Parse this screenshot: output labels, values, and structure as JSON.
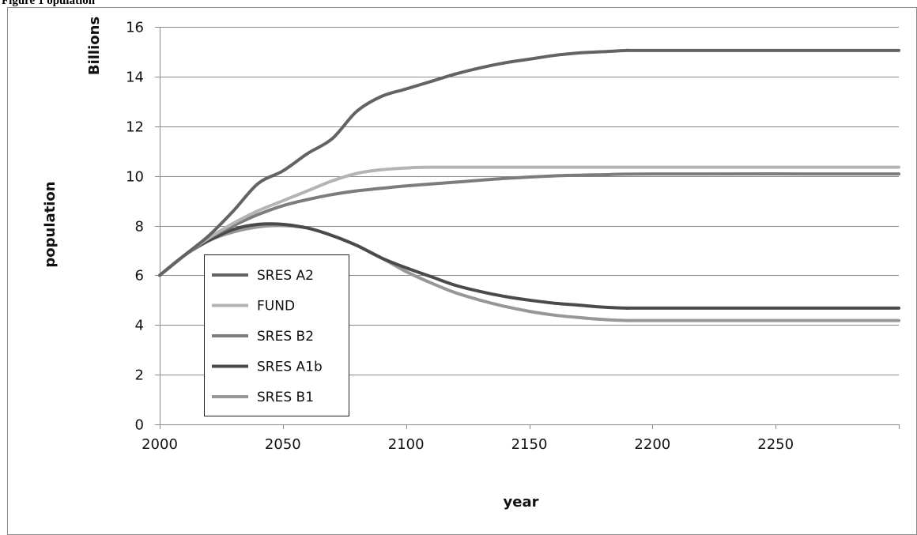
{
  "figure_caption": "Figure 1 opulation",
  "chart_data": {
    "type": "line",
    "xlabel": "year",
    "ylabel": "population",
    "y_unit": "Billions",
    "xlim": [
      2000,
      2300
    ],
    "ylim": [
      0,
      16
    ],
    "x_ticks": [
      2000,
      2050,
      2100,
      2150,
      2200,
      2250
    ],
    "y_ticks": [
      0,
      2,
      4,
      6,
      8,
      10,
      12,
      14,
      16
    ],
    "grid": "horizontal",
    "legend_position": "lower-left inside",
    "series": [
      {
        "name": "SRES A2",
        "color": "#636363",
        "x": [
          2000,
          2010,
          2020,
          2030,
          2040,
          2050,
          2060,
          2070,
          2080,
          2090,
          2100,
          2110,
          2120,
          2130,
          2140,
          2150,
          2160,
          2170,
          2180,
          2190,
          2200,
          2300
        ],
        "values": [
          6.0,
          6.8,
          7.6,
          8.6,
          9.7,
          10.2,
          10.9,
          11.5,
          12.6,
          13.2,
          13.5,
          13.8,
          14.1,
          14.35,
          14.55,
          14.7,
          14.85,
          14.95,
          15.0,
          15.05,
          15.05,
          15.05
        ]
      },
      {
        "name": "FUND",
        "color": "#b4b4b4",
        "x": [
          2000,
          2010,
          2020,
          2030,
          2040,
          2050,
          2060,
          2070,
          2080,
          2090,
          2100,
          2110,
          2150,
          2200,
          2300
        ],
        "values": [
          6.0,
          6.8,
          7.5,
          8.1,
          8.6,
          9.0,
          9.4,
          9.8,
          10.1,
          10.25,
          10.32,
          10.35,
          10.35,
          10.35,
          10.35
        ]
      },
      {
        "name": "SRES B2",
        "color": "#7c7c7c",
        "x": [
          2000,
          2010,
          2020,
          2030,
          2040,
          2050,
          2060,
          2070,
          2080,
          2090,
          2100,
          2120,
          2140,
          2160,
          2180,
          2200,
          2300
        ],
        "values": [
          6.0,
          6.8,
          7.5,
          8.0,
          8.45,
          8.8,
          9.05,
          9.25,
          9.4,
          9.5,
          9.6,
          9.75,
          9.9,
          10.0,
          10.05,
          10.08,
          10.08
        ]
      },
      {
        "name": "SRES A1b",
        "color": "#4a4a4a",
        "x": [
          2000,
          2010,
          2020,
          2030,
          2040,
          2050,
          2060,
          2070,
          2080,
          2090,
          2100,
          2110,
          2120,
          2130,
          2140,
          2150,
          2160,
          2170,
          2180,
          2190,
          2200,
          2300
        ],
        "values": [
          6.0,
          6.8,
          7.4,
          7.85,
          8.05,
          8.05,
          7.9,
          7.6,
          7.2,
          6.7,
          6.3,
          5.95,
          5.6,
          5.35,
          5.15,
          5.0,
          4.88,
          4.8,
          4.72,
          4.68,
          4.68,
          4.68
        ]
      },
      {
        "name": "SRES B1",
        "color": "#979797",
        "x": [
          2000,
          2010,
          2020,
          2030,
          2040,
          2050,
          2060,
          2070,
          2080,
          2090,
          2100,
          2110,
          2120,
          2130,
          2140,
          2150,
          2160,
          2170,
          2180,
          2190,
          2200,
          2300
        ],
        "values": [
          6.0,
          6.8,
          7.4,
          7.75,
          7.95,
          8.0,
          7.9,
          7.6,
          7.2,
          6.7,
          6.15,
          5.7,
          5.3,
          5.0,
          4.75,
          4.55,
          4.4,
          4.3,
          4.22,
          4.18,
          4.18,
          4.18
        ]
      }
    ]
  }
}
